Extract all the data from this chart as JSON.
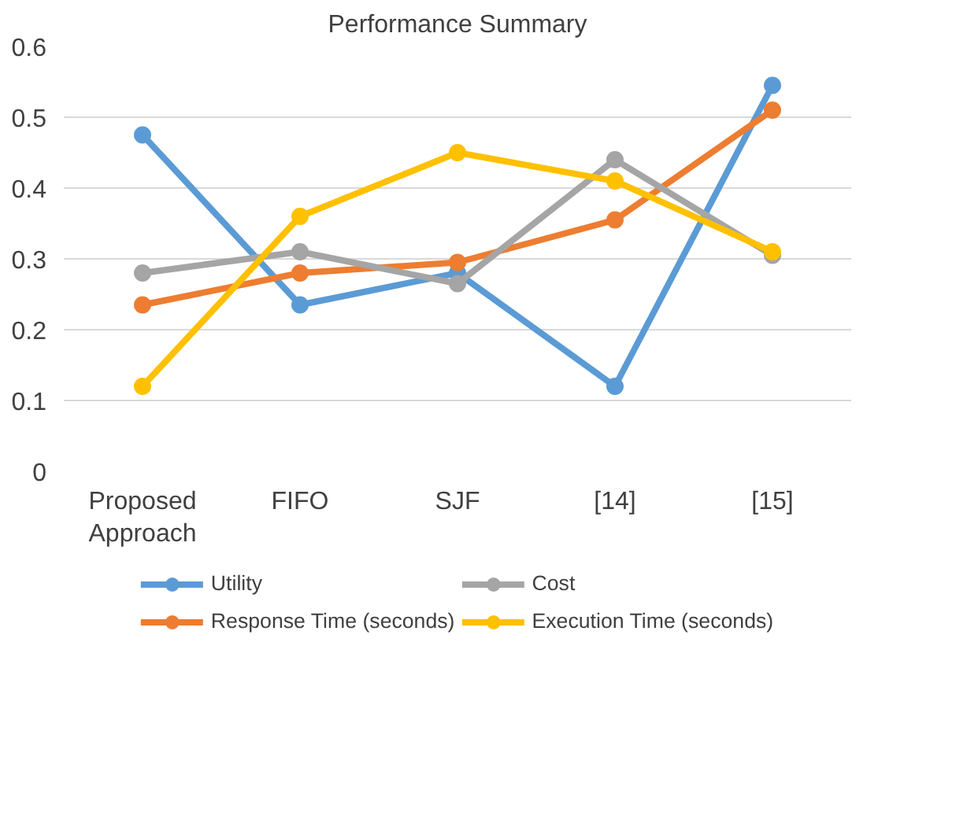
{
  "chart_data": {
    "type": "line",
    "title": "Performance Summary",
    "categories": [
      "Proposed Approach",
      "FIFO",
      "SJF",
      "[14]",
      "[15]"
    ],
    "series": [
      {
        "name": "Utility",
        "color": "#5b9bd5",
        "values": [
          0.475,
          0.235,
          0.28,
          0.12,
          0.545
        ]
      },
      {
        "name": "Response Time (seconds)",
        "color": "#ed7d31",
        "values": [
          0.235,
          0.28,
          0.295,
          0.355,
          0.51
        ]
      },
      {
        "name": "Cost",
        "color": "#a5a5a5",
        "values": [
          0.28,
          0.31,
          0.265,
          0.44,
          0.305
        ]
      },
      {
        "name": "Execution Time (seconds)",
        "color": "#ffc000",
        "values": [
          0.12,
          0.36,
          0.45,
          0.41,
          0.31
        ]
      }
    ],
    "ylim": [
      0,
      0.6
    ],
    "yticks": [
      {
        "value": 0,
        "label": "0"
      },
      0.1,
      0.2,
      0.3,
      0.4,
      0.5,
      0.6
    ],
    "grid": "y",
    "legend": "bottom",
    "marker": "circle",
    "line_style": "solid"
  }
}
